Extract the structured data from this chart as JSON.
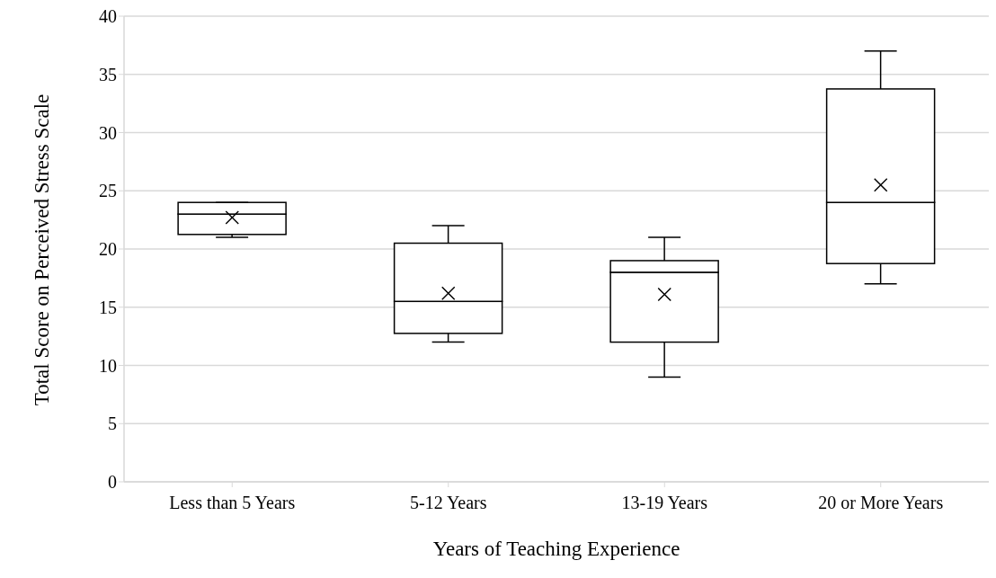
{
  "chart_data": {
    "type": "box",
    "xlabel": "Years of Teaching Experience",
    "ylabel": "Total Score on Perceived Stress Scale",
    "categories": [
      "Less than 5 Years",
      "5-12 Years",
      "13-19 Years",
      "20 or More Years"
    ],
    "boxes": [
      {
        "low": 21,
        "q1": 21.25,
        "median": 23,
        "q3": 24,
        "high": 24,
        "mean": 22.7
      },
      {
        "low": 12,
        "q1": 12.75,
        "median": 15.5,
        "q3": 20.5,
        "high": 22,
        "mean": 16.2
      },
      {
        "low": 9,
        "q1": 12,
        "median": 18,
        "q3": 19,
        "high": 21,
        "mean": 16.1
      },
      {
        "low": 17,
        "q1": 18.75,
        "median": 24,
        "q3": 33.75,
        "high": 37,
        "mean": 25.5
      }
    ],
    "color": "#000000",
    "ylim": [
      0,
      40
    ],
    "yticks": [
      0,
      5,
      10,
      15,
      20,
      25,
      30,
      35,
      40
    ],
    "grid": "y",
    "marker": "cross",
    "legend": false
  }
}
